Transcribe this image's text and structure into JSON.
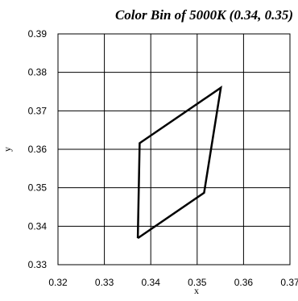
{
  "chart_data": {
    "type": "line",
    "title": "Color Bin of 5000K (0.34, 0.35)",
    "xlabel": "x",
    "ylabel": "y",
    "xlim": [
      0.32,
      0.37
    ],
    "ylim": [
      0.33,
      0.39
    ],
    "x_ticks": [
      "0.32",
      "0.33",
      "0.34",
      "0.35",
      "0.36",
      "0.37"
    ],
    "y_ticks": [
      "0.33",
      "0.34",
      "0.35",
      "0.36",
      "0.37",
      "0.38",
      "0.39"
    ],
    "x_tick_values": [
      0.32,
      0.33,
      0.34,
      0.35,
      0.36,
      0.37
    ],
    "y_tick_values": [
      0.33,
      0.34,
      0.35,
      0.36,
      0.37,
      0.38,
      0.39
    ],
    "grid": true,
    "series": [
      {
        "x": [
          0.3372,
          0.3515,
          0.3551,
          0.3376,
          0.3372
        ],
        "y": [
          0.3369,
          0.3487,
          0.376,
          0.3616,
          0.3369
        ]
      }
    ],
    "colors": {
      "line": "#000000",
      "grid": "#000000",
      "background": "#ffffff"
    }
  }
}
